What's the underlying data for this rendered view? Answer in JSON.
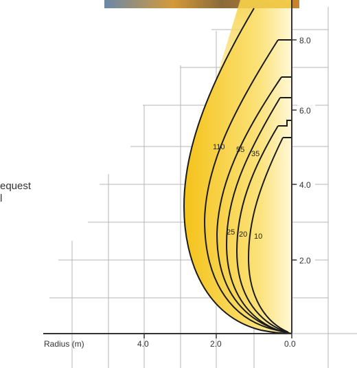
{
  "side_text": {
    "line1": "equest",
    "line2": "l"
  },
  "x_axis": {
    "title": "Radius (m)",
    "ticks": [
      "4.0",
      "2.0",
      "0.0"
    ]
  },
  "y_axis": {
    "ticks": [
      "2.0",
      "4.0",
      "6.0",
      "8.0"
    ]
  },
  "curves": [
    {
      "label": "110",
      "color": "#1a1a1a"
    },
    {
      "label": "55",
      "color": "#1a1a1a"
    },
    {
      "label": "35",
      "color": "#1a1a1a"
    },
    {
      "label": "25",
      "color": "#1a1a1a"
    },
    {
      "label": "20",
      "color": "#1a1a1a"
    },
    {
      "label": "10",
      "color": "#1a1a1a"
    }
  ],
  "colors": {
    "fill_dark": "#f5c518",
    "fill_light": "#fff6c8",
    "grid": "#b5b5b5",
    "axis": "#333333"
  }
}
